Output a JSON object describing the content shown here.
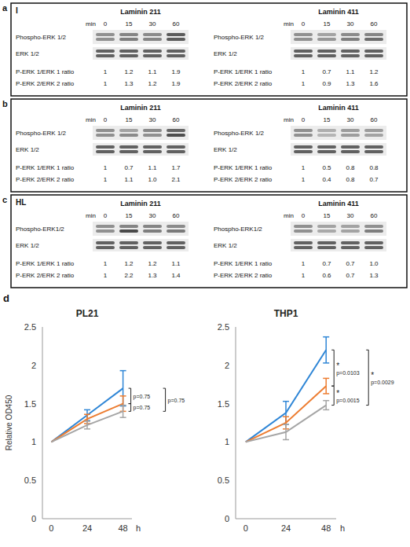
{
  "blot_panels": [
    {
      "letter": "a",
      "sublabel": "I",
      "blots": [
        {
          "title": "Laminin 211",
          "time_label": "min",
          "times": [
            "0",
            "15",
            "30",
            "60"
          ],
          "rows": [
            "Phospho-ERK 1/2",
            "ERK 1/2"
          ],
          "ratios": [
            {
              "label": "P-ERK 1/ERK 1 ratio",
              "values": [
                "1",
                "1.2",
                "1.1",
                "1.9"
              ]
            },
            {
              "label": "P-ERK 2/ERK 2 ratio",
              "values": [
                "1",
                "1.3",
                "1.2",
                "1.9"
              ]
            }
          ]
        },
        {
          "title": "Laminin 411",
          "time_label": "min",
          "times": [
            "0",
            "15",
            "30",
            "60"
          ],
          "rows": [
            "Phospho-ERK 1/2",
            "ERK 1/2"
          ],
          "ratios": [
            {
              "label": "P-ERK 1/ERK 1 ratio",
              "values": [
                "1",
                "0.7",
                "1.1",
                "1.2"
              ]
            },
            {
              "label": "P-ERK 2/ERK 2 ratio",
              "values": [
                "1",
                "0.9",
                "1.3",
                "1.6"
              ]
            }
          ]
        }
      ]
    },
    {
      "letter": "b",
      "blots": [
        {
          "title": "Laminin 211",
          "time_label": "min",
          "times": [
            "0",
            "15",
            "30",
            "60"
          ],
          "rows": [
            "Phospho-ERK 1/2",
            "ERK 1/2"
          ],
          "ratios": [
            {
              "label": "P-ERK 1/ERK 1 ratio",
              "values": [
                "1",
                "0.7",
                "1.1",
                "1.7"
              ]
            },
            {
              "label": "P-ERK 2/ERK 2 ratio",
              "values": [
                "1",
                "1.1",
                "1.0",
                "2.1"
              ]
            }
          ]
        },
        {
          "title": "Laminin 411",
          "time_label": "min",
          "times": [
            "0",
            "15",
            "30",
            "60"
          ],
          "rows": [
            "Phospho-ERK 1/2",
            "ERK 1/2"
          ],
          "ratios": [
            {
              "label": "P-ERK 1/ERK 1 ratio",
              "values": [
                "1",
                "0.5",
                "0.8",
                "0.8"
              ]
            },
            {
              "label": "P-ERK 2/ERK 2 ratio",
              "values": [
                "1",
                "0.4",
                "0.8",
                "0.7"
              ]
            }
          ]
        }
      ]
    },
    {
      "letter": "c",
      "sublabel": "HL",
      "blots": [
        {
          "title": "Laminin 211",
          "time_label": "min",
          "times": [
            "0",
            "15",
            "30",
            "60"
          ],
          "rows": [
            "Phospho-ERK1/2",
            "ERK 1/2"
          ],
          "ratios": [
            {
              "label": "P-ERK 1/ERK 1 ratio",
              "values": [
                "1",
                "1.2",
                "1.2",
                "1.1"
              ]
            },
            {
              "label": "P-ERK 2/ERK 2 ratio",
              "values": [
                "1",
                "2.2",
                "1.3",
                "1.4"
              ]
            }
          ]
        },
        {
          "title": "Laminin 411",
          "time_label": "min",
          "times": [
            "0",
            "15",
            "30",
            "60"
          ],
          "rows": [
            "Phospho-ERK1/2",
            "ERK 1/2"
          ],
          "ratios": [
            {
              "label": "P-ERK 1/ERK 1 ratio",
              "values": [
                "1",
                "0.7",
                "0.7",
                "1.0"
              ]
            },
            {
              "label": "P-ERK 2/ERK 2 ratio",
              "values": [
                "1",
                "0.6",
                "0.7",
                "1.3"
              ]
            }
          ]
        }
      ]
    }
  ],
  "chart_panel_letter": "d",
  "chart_data": [
    {
      "type": "line",
      "title": "PL21",
      "y_label": "Relative OD450",
      "x_label": "h",
      "x": [
        0,
        24,
        48
      ],
      "xlim": [
        -6,
        54
      ],
      "xticks": [
        0,
        24,
        48
      ],
      "ylim": [
        0,
        2.5
      ],
      "yticks": [
        0,
        0.5,
        1,
        1.5,
        2,
        2.5
      ],
      "series": [
        {
          "color": "#2f86d6",
          "values": [
            1,
            1.35,
            1.7
          ],
          "errors": [
            0,
            0.07,
            0.23
          ]
        },
        {
          "color": "#ed7d31",
          "values": [
            1,
            1.3,
            1.5
          ],
          "errors": [
            0,
            0.06,
            0.1
          ]
        },
        {
          "color": "#a5a5a5",
          "values": [
            1,
            1.22,
            1.4
          ],
          "errors": [
            0,
            0.05,
            0.08
          ]
        }
      ],
      "annotations": [
        {
          "between": [
            0,
            1
          ],
          "label": "p=0.75"
        },
        {
          "between": [
            1,
            2
          ],
          "label": "p=0.75"
        },
        {
          "between": [
            0,
            2
          ],
          "label": "p=0.75"
        }
      ]
    },
    {
      "type": "line",
      "title": "THP1",
      "x_label": "h",
      "x": [
        0,
        24,
        48
      ],
      "xlim": [
        -6,
        54
      ],
      "xticks": [
        0,
        24,
        48
      ],
      "ylim": [
        0,
        2.5
      ],
      "yticks": [
        0,
        0.5,
        1,
        1.5,
        2,
        2.5
      ],
      "series": [
        {
          "color": "#2f86d6",
          "values": [
            1,
            1.38,
            2.2
          ],
          "errors": [
            0,
            0.15,
            0.17
          ]
        },
        {
          "color": "#ed7d31",
          "values": [
            1,
            1.25,
            1.73
          ],
          "errors": [
            0,
            0.08,
            0.1
          ]
        },
        {
          "color": "#a5a5a5",
          "values": [
            1,
            1.13,
            1.48
          ],
          "errors": [
            0,
            0.1,
            0.06
          ]
        }
      ],
      "annotations": [
        {
          "between": [
            0,
            1
          ],
          "label": "p=0.0103",
          "sign": "*"
        },
        {
          "between": [
            1,
            2
          ],
          "label": "p=0.0015",
          "sign": "*"
        },
        {
          "between": [
            0,
            2
          ],
          "label": "p=0.0029",
          "sign": "*"
        }
      ]
    }
  ]
}
